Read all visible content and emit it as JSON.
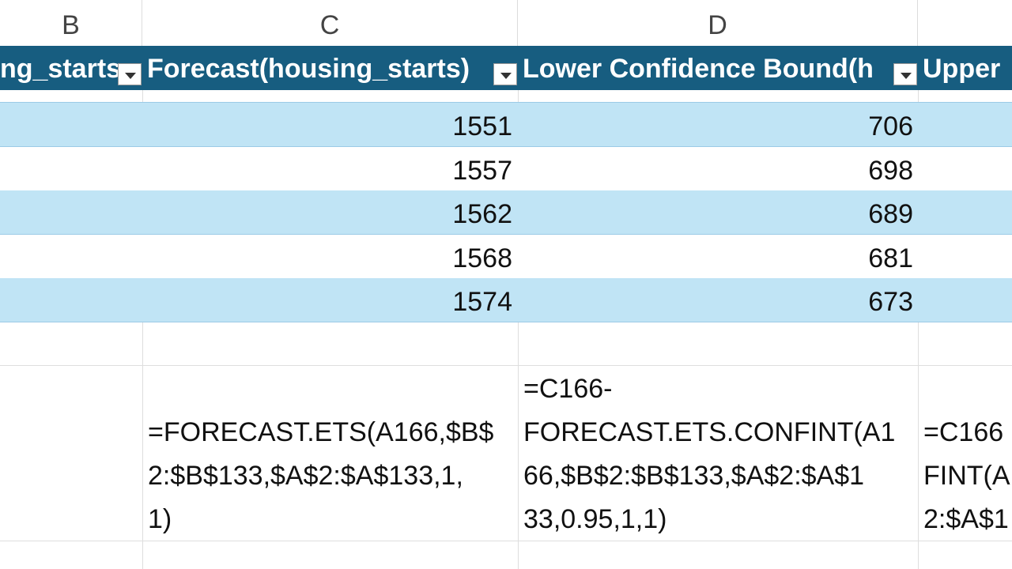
{
  "column_headers": [
    "B",
    "C",
    "D"
  ],
  "table": {
    "headers": [
      "ng_starts",
      "Forecast(housing_starts)",
      "Lower Confidence Bound(h",
      "Upper"
    ],
    "rows": [
      [
        1551,
        706
      ],
      [
        1557,
        698
      ],
      [
        1562,
        689
      ],
      [
        1568,
        681
      ],
      [
        1574,
        673
      ]
    ]
  },
  "formulas": {
    "c": [
      "=FORECAST.ETS(A166,$B$",
      "2:$B$133,$A$2:$A$133,1,",
      "1)"
    ],
    "d": [
      "=C166-",
      "FORECAST.ETS.CONFINT(A1",
      "66,$B$2:$B$133,$A$2:$A$1",
      "33,0.95,1,1)"
    ],
    "e": [
      "=C166",
      "FINT(A",
      "2:$A$1"
    ]
  }
}
